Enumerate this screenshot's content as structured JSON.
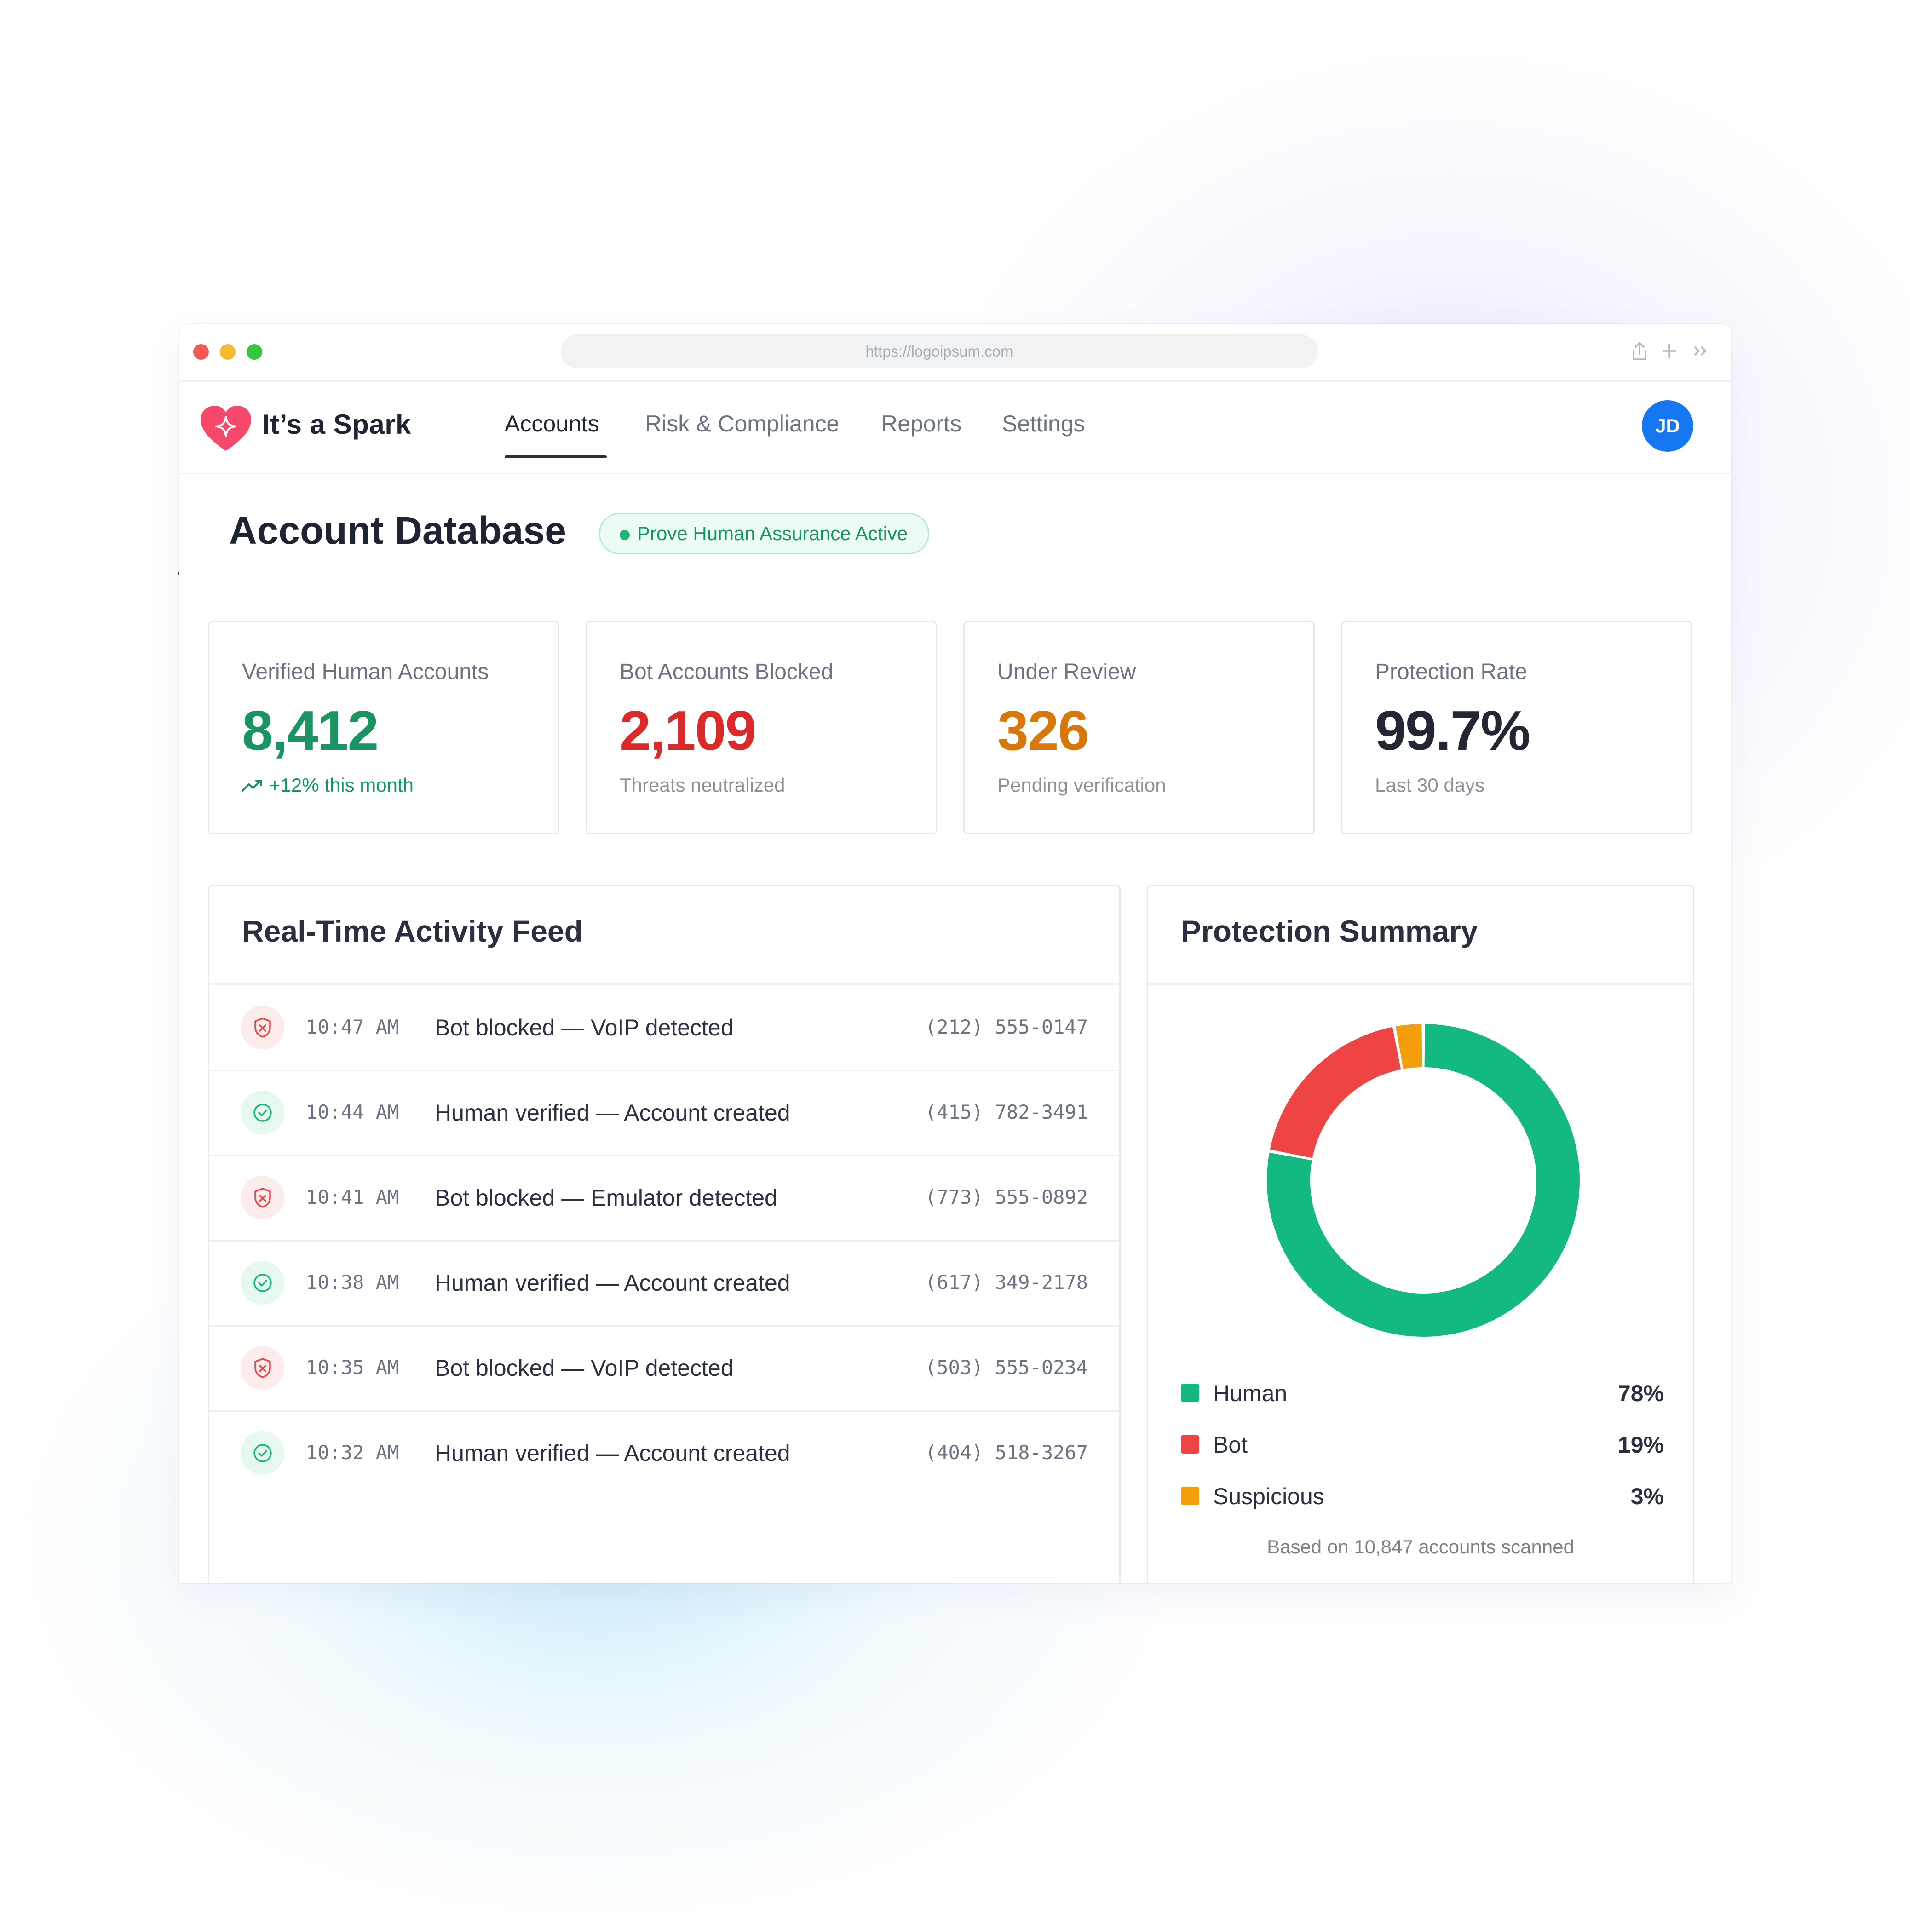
{
  "browser": {
    "url": "https://logoipsum.com",
    "icons": {
      "share": "share-icon",
      "new_tab": "plus-icon",
      "more": "double-chevron-right-icon"
    }
  },
  "brand": {
    "name": "It’s a Spark",
    "logo": "heart-sparkle-icon",
    "color": "#f5486b"
  },
  "nav": {
    "items": [
      {
        "label": "Accounts",
        "active": true
      },
      {
        "label": "Risk & Compliance",
        "active": false
      },
      {
        "label": "Reports",
        "active": false
      },
      {
        "label": "Settings",
        "active": false
      }
    ]
  },
  "user": {
    "initials": "JD",
    "avatar_color": "#1677f2"
  },
  "page": {
    "title": "Account Database",
    "status_badge": "Prove Human Assurance Active"
  },
  "stats": [
    {
      "label": "Verified Human Accounts",
      "value": "8,412",
      "sub": "+12% this month",
      "color": "#1a9463",
      "trend_icon": "trending-up-icon"
    },
    {
      "label": "Bot Accounts Blocked",
      "value": "2,109",
      "sub": "Threats neutralized",
      "color": "#dc2a2a"
    },
    {
      "label": "Under Review",
      "value": "326",
      "sub": "Pending verification",
      "color": "#d9780a"
    },
    {
      "label": "Protection Rate",
      "value": "99.7%",
      "sub": "Last 30 days",
      "color": "#232733"
    }
  ],
  "feed": {
    "title": "Real-Time Activity Feed",
    "rows": [
      {
        "type": "bot",
        "icon": "shield-x-icon",
        "time": "10:47 AM",
        "event": "Bot blocked — VoIP detected",
        "phone": "(212) 555-0147"
      },
      {
        "type": "human",
        "icon": "check-circle-icon",
        "time": "10:44 AM",
        "event": "Human verified — Account created",
        "phone": "(415) 782-3491"
      },
      {
        "type": "bot",
        "icon": "shield-x-icon",
        "time": "10:41 AM",
        "event": "Bot blocked — Emulator detected",
        "phone": "(773) 555-0892"
      },
      {
        "type": "human",
        "icon": "check-circle-icon",
        "time": "10:38 AM",
        "event": "Human verified — Account created",
        "phone": "(617) 349-2178"
      },
      {
        "type": "bot",
        "icon": "shield-x-icon",
        "time": "10:35 AM",
        "event": "Bot blocked — VoIP detected",
        "phone": "(503) 555-0234"
      },
      {
        "type": "human",
        "icon": "check-circle-icon",
        "time": "10:32 AM",
        "event": "Human verified — Account created",
        "phone": "(404) 518-3267"
      }
    ]
  },
  "summary": {
    "title": "Protection Summary",
    "note": "Based on 10,847 accounts scanned",
    "legend": [
      {
        "name": "Human",
        "pct": "78%",
        "color": "#13b981"
      },
      {
        "name": "Bot",
        "pct": "19%",
        "color": "#ef4444"
      },
      {
        "name": "Suspicious",
        "pct": "3%",
        "color": "#f59e0b"
      }
    ]
  },
  "chart_data": {
    "type": "pie",
    "categories": [
      "Human",
      "Bot",
      "Suspicious"
    ],
    "values": [
      78,
      19,
      3
    ],
    "colors": [
      "#13b981",
      "#ef4444",
      "#f59e0b"
    ],
    "style": "donut"
  }
}
